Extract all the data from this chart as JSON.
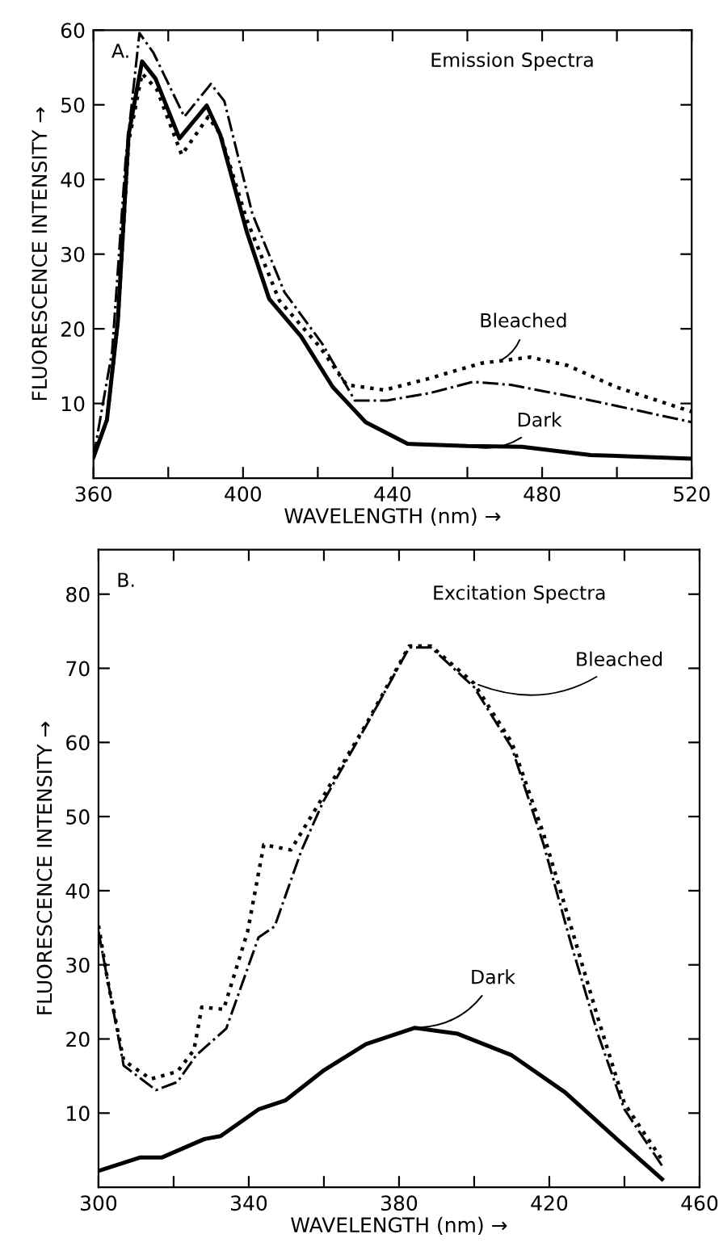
{
  "chart_data": [
    {
      "type": "line",
      "title": "Emission Spectra",
      "xlabel": "WAVELENGTH (nm) →",
      "ylabel": "FLUORESCENCE INTENSITY →",
      "annotations": [
        "A.",
        {
          "text": "Bleached",
          "x": 468,
          "y": 15.5
        },
        {
          "text": "Dark",
          "x": 460,
          "y": 4.3
        }
      ],
      "xlim": [
        360,
        520
      ],
      "ylim": [
        0,
        60
      ],
      "xticks": [
        360,
        {
          "value": 380,
          "label": null
        },
        400,
        {
          "value": 420,
          "label": null
        },
        440,
        {
          "value": 460,
          "label": null
        },
        480,
        {
          "value": 500,
          "label": null
        },
        520
      ],
      "yticks": [
        10,
        20,
        30,
        40,
        50,
        60
      ],
      "grid": false,
      "legend": false,
      "series": [
        {
          "color": "#000000",
          "line_style": "solid",
          "x": [
            360,
            363.6,
            366.5,
            369.4,
            373,
            376.6,
            383,
            390.3,
            393.9,
            401,
            407,
            415.5,
            424,
            432.8,
            444,
            460,
            474.6,
            493,
            520
          ],
          "values": [
            2.8,
            7.8,
            20.9,
            46,
            55.8,
            53.5,
            45.5,
            49.9,
            46,
            33,
            24,
            19,
            12.2,
            7.5,
            4.6,
            4.3,
            4.2,
            3.1,
            2.6
          ]
        },
        {
          "color": "#000000",
          "line_style": "dotted",
          "x": [
            360,
            363.6,
            366.5,
            369.4,
            373,
            377,
            383.6,
            390.7,
            394,
            401,
            409.7,
            420.5,
            427.7,
            437.8,
            449.4,
            463.8,
            476.8,
            486.8,
            499.8,
            520
          ],
          "values": [
            2.8,
            7.8,
            20.9,
            45,
            54.2,
            52,
            43.3,
            48.4,
            46,
            34.6,
            23.8,
            17.6,
            12.5,
            11.8,
            13.3,
            15.4,
            16.2,
            15.1,
            12.2,
            8.9
          ]
        },
        {
          "color": "#000000",
          "line_style": "dashdot",
          "x": [
            360,
            365,
            368.6,
            372.3,
            376,
            384.3,
            391.4,
            395,
            402.5,
            411.1,
            421.2,
            429.9,
            438.5,
            450,
            461.5,
            471.6,
            493.2,
            520
          ],
          "values": [
            2.8,
            17,
            42.6,
            59.6,
            57,
            48.4,
            52.8,
            50.5,
            35.4,
            24.9,
            18,
            10.4,
            10.4,
            11.4,
            12.9,
            12.5,
            10.4,
            7.5
          ]
        }
      ]
    },
    {
      "type": "line",
      "title": "Excitation Spectra",
      "xlabel": "WAVELENGTH (nm) →",
      "ylabel": "FLUORESCENCE INTENSITY →",
      "annotations": [
        "B.",
        {
          "text": "Bleached",
          "x": 400,
          "y": 68
        },
        {
          "text": "Dark",
          "x": 384,
          "y": 21.5
        }
      ],
      "xlim": [
        300,
        460
      ],
      "ylim": [
        0,
        86
      ],
      "xticks": [
        300,
        {
          "value": 320,
          "label": null
        },
        340,
        {
          "value": 360,
          "label": null
        },
        380,
        {
          "value": 400,
          "label": null
        },
        420,
        {
          "value": 440,
          "label": null
        },
        460
      ],
      "yticks": [
        10,
        20,
        30,
        40,
        50,
        60,
        70,
        80
      ],
      "grid": false,
      "legend": false,
      "series": [
        {
          "color": "#000000",
          "line_style": "solid",
          "x": [
            300,
            311,
            316.8,
            328.2,
            332.5,
            342.6,
            349.7,
            359.8,
            371.2,
            384.2,
            395.6,
            410,
            424.2,
            438.6,
            450
          ],
          "values": [
            2.2,
            4,
            4,
            6.5,
            6.9,
            10.5,
            11.7,
            15.7,
            19.3,
            21.5,
            20.7,
            17.8,
            12.8,
            6.2,
            1.1
          ]
        },
        {
          "color": "#000000",
          "line_style": "dotted",
          "x": [
            300,
            302.4,
            306.7,
            313.9,
            321,
            325.4,
            327.5,
            333.3,
            339.7,
            344,
            351.2,
            359.8,
            371.3,
            382.7,
            388.5,
            399.9,
            410,
            418.5,
            425.7,
            432.9,
            440,
            450
          ],
          "values": [
            35.3,
            28,
            17.1,
            14.6,
            15.6,
            18.5,
            24.3,
            24,
            34.5,
            46.2,
            45.5,
            52.7,
            62.5,
            73,
            73,
            68,
            60,
            47.6,
            35.3,
            22.9,
            11.3,
            3.7
          ]
        },
        {
          "color": "#000000",
          "line_style": "dashdot",
          "x": [
            300,
            306.7,
            315.3,
            321,
            326,
            334,
            342.6,
            346.9,
            354,
            359.8,
            371.3,
            382.7,
            388.5,
            399.9,
            410,
            418.5,
            425.7,
            432.9,
            440,
            450
          ],
          "values": [
            34.5,
            16.4,
            13.1,
            14.2,
            17.8,
            21.4,
            33.7,
            35.2,
            45.4,
            52,
            62.3,
            72.8,
            72.8,
            67.5,
            59.3,
            46.2,
            33,
            20.7,
            10.5,
            2.9
          ]
        }
      ]
    }
  ]
}
